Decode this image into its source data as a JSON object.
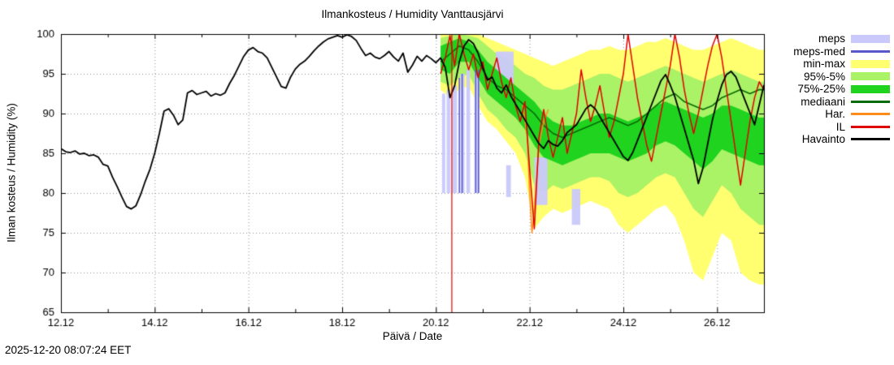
{
  "title": "Ilmankosteus / Humidity  Vanttausjärvi",
  "timestamp": "2025-12-20 08:07:24 EET",
  "axes": {
    "xlabel": "Päivä / Date",
    "ylabel": "Ilman kosteus / Humidity (%)"
  },
  "legend": [
    {
      "label": "meps",
      "color": "#c9c9fb",
      "type": "fill"
    },
    {
      "label": "meps-med",
      "color": "#5858c8",
      "type": "line"
    },
    {
      "label": "min-max",
      "color": "#ffff70",
      "type": "fill"
    },
    {
      "label": "95%-5%",
      "color": "#aaf266",
      "type": "fill"
    },
    {
      "label": "75%-25%",
      "color": "#1fd31f",
      "type": "fill"
    },
    {
      "label": "mediaani",
      "color": "#076b07",
      "type": "line"
    },
    {
      "label": "Har.",
      "color": "#ff8c1a",
      "type": "line"
    },
    {
      "label": "IL",
      "color": "#e00000",
      "type": "line"
    },
    {
      "label": "Havainto",
      "color": "#000000",
      "type": "line"
    }
  ],
  "chart_data": {
    "type": "line",
    "title": "Ilmankosteus / Humidity  Vanttausjärvi",
    "xlabel": "Päivä / Date",
    "ylabel": "Ilman kosteus / Humidity (%)",
    "xlim": [
      12.0,
      27.0
    ],
    "ylim": [
      65,
      100
    ],
    "grid": "dotted",
    "legend_position": "right-outside",
    "x_ticks": [
      {
        "v": 12,
        "label": "12.12"
      },
      {
        "v": 14,
        "label": "14.12"
      },
      {
        "v": 16,
        "label": "16.12"
      },
      {
        "v": 18,
        "label": "18.12"
      },
      {
        "v": 20,
        "label": "20.12"
      },
      {
        "v": 22,
        "label": "22.12"
      },
      {
        "v": 24,
        "label": "24.12"
      },
      {
        "v": 26,
        "label": "26.12"
      }
    ],
    "y_ticks": [
      65,
      70,
      75,
      80,
      85,
      90,
      95,
      100
    ],
    "now_x": 20.34,
    "colors": {
      "minmax": "#ffff70",
      "p95": "#aaf266",
      "p75": "#1fd31f",
      "meps": "#c9c9fb",
      "meps_med": "#5858c8",
      "mediaani": "#076b07",
      "har": "#ff8c1a",
      "il": "#e00000",
      "havainto": "#000000",
      "now_line": "#e00000",
      "grid": "#909090"
    },
    "bands": {
      "x0": 20.1,
      "dx": 0.2,
      "min": [
        93,
        92,
        93,
        93.5,
        91,
        89,
        88,
        86.5,
        85,
        82,
        75.5,
        77,
        78,
        77.5,
        78,
        78.5,
        79,
        78.5,
        78,
        76,
        75,
        76,
        77,
        78,
        78.5,
        77,
        74,
        70,
        69,
        72,
        75,
        74,
        70,
        69,
        68.5
      ],
      "p5": [
        94,
        93.5,
        94.5,
        95,
        92.5,
        90.5,
        89.5,
        88,
        87,
        85,
        81,
        80,
        81,
        80.5,
        81,
        81.5,
        82,
        82,
        81.5,
        80,
        79.5,
        80,
        81,
        82,
        82.5,
        82,
        80,
        78,
        77,
        79,
        81,
        80,
        78,
        77,
        76
      ],
      "p25": [
        95.5,
        95,
        96.5,
        96.5,
        94.5,
        92.5,
        91.5,
        90.5,
        89.5,
        88,
        86,
        84.5,
        84,
        83.5,
        84,
        84.5,
        85,
        85,
        85,
        84.5,
        84,
        84.5,
        85,
        86,
        86.5,
        86,
        85,
        84,
        83,
        84,
        85.5,
        85,
        84.5,
        84,
        83.5
      ],
      "p75": [
        98.5,
        99,
        99.5,
        99,
        98,
        96.5,
        95.5,
        94.5,
        93.5,
        92.5,
        91.5,
        90,
        89,
        88.5,
        88.5,
        89,
        89.5,
        90,
        90,
        89.5,
        89,
        89.5,
        90,
        91,
        91.5,
        91,
        90.5,
        90,
        89.5,
        90,
        91,
        91,
        90.5,
        90,
        89.5
      ],
      "p95": [
        99.5,
        99.8,
        100,
        99.8,
        99.5,
        98.5,
        97.5,
        97,
        96,
        95,
        94.5,
        93.5,
        93,
        93,
        93.5,
        94,
        94.5,
        95,
        95,
        94.5,
        94,
        94.5,
        95,
        95.5,
        96,
        95.5,
        95,
        94.5,
        94,
        94.5,
        95,
        95.5,
        95,
        94.5,
        94
      ],
      "max": [
        100,
        100,
        100,
        100,
        100,
        99.5,
        99,
        98.5,
        98,
        97.5,
        97,
        96.5,
        96,
        96.5,
        97,
        97.5,
        98,
        98,
        98.5,
        98,
        98,
        98.5,
        99,
        99,
        99.5,
        99,
        98.5,
        98,
        98,
        98.5,
        99,
        99.5,
        99,
        98.5,
        98
      ]
    },
    "meps_segments": [
      {
        "x0": 20.13,
        "x1": 20.2,
        "lo": 80,
        "hi": 92.5
      },
      {
        "x0": 20.23,
        "x1": 20.31,
        "lo": 80,
        "hi": 93
      },
      {
        "x0": 20.35,
        "x1": 20.45,
        "lo": 80,
        "hi": 93.5
      },
      {
        "x0": 20.52,
        "x1": 20.61,
        "lo": 80,
        "hi": 95
      },
      {
        "x0": 20.65,
        "x1": 20.73,
        "lo": 80,
        "hi": 95.5
      },
      {
        "x0": 20.82,
        "x1": 20.93,
        "lo": 80,
        "hi": 96
      },
      {
        "x0": 21.28,
        "x1": 21.66,
        "lo": 91.5,
        "hi": 97.8
      },
      {
        "x0": 21.5,
        "x1": 21.6,
        "lo": 79.5,
        "hi": 83.5
      },
      {
        "x0": 22.1,
        "x1": 22.38,
        "lo": 78.5,
        "hi": 84.5
      },
      {
        "x0": 22.9,
        "x1": 23.08,
        "lo": 76,
        "hi": 80.5
      }
    ],
    "meps_med_segments": [
      {
        "x": 20.5,
        "y0": 80,
        "y1": 94.5
      },
      {
        "x": 20.56,
        "y0": 80,
        "y1": 95
      },
      {
        "x": 20.85,
        "y0": 80,
        "y1": 95.5
      },
      {
        "x": 20.91,
        "y0": 80,
        "y1": 95.5
      }
    ],
    "series": {
      "havainto": {
        "x0": 12.0,
        "dx": 0.1,
        "y": [
          85.6,
          85.2,
          85.1,
          85.3,
          84.9,
          85.0,
          84.7,
          84.8,
          84.5,
          83.6,
          83.4,
          82.0,
          80.8,
          79.5,
          78.3,
          78.0,
          78.4,
          79.8,
          81.5,
          83.0,
          85.0,
          87.5,
          90.3,
          90.6,
          89.8,
          88.6,
          89.2,
          92.6,
          92.9,
          92.4,
          92.6,
          92.8,
          92.2,
          92.5,
          92.3,
          92.6,
          93.8,
          94.8,
          96.0,
          97.2,
          98.0,
          98.3,
          97.8,
          97.6,
          97.0,
          95.8,
          94.6,
          93.4,
          93.2,
          94.6,
          95.6,
          96.2,
          96.6,
          97.2,
          97.9,
          98.5,
          99.0,
          99.4,
          99.6,
          99.8,
          99.6,
          99.9,
          99.7,
          99.2,
          98.2,
          97.3,
          97.6,
          97.1,
          96.9,
          97.3,
          97.8,
          97.1,
          96.6,
          97.6,
          95.2,
          96.1,
          97.2,
          96.6,
          97.3,
          96.9,
          96.4,
          97.0,
          95.8,
          92.0,
          93.5,
          96.5,
          98.5,
          99.3,
          98.8,
          97.6,
          95.8,
          94.2,
          94.6,
          93.2,
          92.6,
          93.6,
          92.2,
          91.2,
          90.2,
          89.2,
          88.2,
          87.2,
          86.2,
          85.6,
          86.6,
          86.1,
          85.9,
          86.6,
          87.6,
          88.1,
          88.6,
          89.6,
          90.6,
          91.1,
          90.6,
          89.6,
          88.6,
          87.6,
          86.6,
          85.6,
          84.6,
          84.1,
          85.1,
          86.6,
          88.1,
          89.6,
          91.1,
          92.6,
          94.1,
          94.9,
          93.6,
          92.1,
          90.1,
          88.1,
          86.1,
          84.1,
          81.2,
          83.2,
          86.2,
          89.2,
          91.6,
          93.6,
          94.9,
          95.3,
          94.6,
          93.1,
          91.6,
          90.1,
          88.6,
          91.1,
          93.6
        ]
      },
      "mediaani": {
        "x0": 20.1,
        "dx": 0.2,
        "y": [
          96.5,
          97.5,
          98.5,
          98.0,
          96.5,
          94.5,
          93.5,
          93.0,
          92.0,
          91.0,
          90.0,
          88.5,
          87.5,
          87.0,
          87.5,
          88.0,
          88.5,
          89.0,
          89.5,
          89.0,
          88.5,
          89.0,
          90.0,
          91.0,
          92.0,
          92.5,
          91.5,
          91.0,
          90.5,
          91.0,
          92.0,
          92.5,
          93.0,
          92.5,
          93.0
        ]
      },
      "il": {
        "x0": 20.1,
        "dx": 0.1,
        "y": [
          95.0,
          97.0,
          99.8,
          96.0,
          100.0,
          97.5,
          95.5,
          97.5,
          94.5,
          96.5,
          93.0,
          95.0,
          97.0,
          94.0,
          92.0,
          94.5,
          91.0,
          89.0,
          91.5,
          83.0,
          75.5,
          87.0,
          90.5,
          87.0,
          84.5,
          87.0,
          89.5,
          85.0,
          87.5,
          90.0,
          95.5,
          92.0,
          89.0,
          91.0,
          93.5,
          90.0,
          87.0,
          89.0,
          92.0,
          95.0,
          100.0,
          96.0,
          92.0,
          89.0,
          86.0,
          84.0,
          87.0,
          90.0,
          93.0,
          96.0,
          100.0,
          97.0,
          93.0,
          90.0,
          87.5,
          90.0,
          93.0,
          96.0,
          98.5,
          100.0,
          97.0,
          93.0,
          89.0,
          85.0,
          81.0,
          85.0,
          89.0,
          92.0,
          94.0,
          93.0
        ]
      },
      "har": {
        "x": [
          21.85,
          21.95,
          22.0,
          22.05,
          22.1,
          22.2,
          22.3,
          22.4
        ],
        "y": [
          91,
          87,
          80,
          75,
          78,
          86,
          89,
          90.5
        ]
      }
    }
  }
}
